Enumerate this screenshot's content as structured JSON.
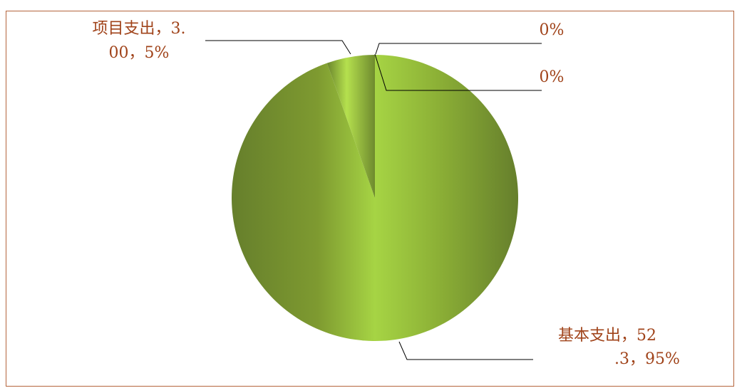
{
  "chart_data": {
    "type": "pie",
    "title": "",
    "slices": [
      {
        "name": "基本支出",
        "value": 52.3,
        "percent": 95,
        "label_lines": [
          "基本支出，52",
          ".3，95%"
        ]
      },
      {
        "name": "项目支出",
        "value": 3.0,
        "percent": 5,
        "label_lines": [
          "项目支出，3.",
          "00，5%"
        ]
      },
      {
        "name": "",
        "value": 0,
        "percent": 0,
        "label_lines": [
          "0%"
        ]
      },
      {
        "name": "",
        "value": 0,
        "percent": 0,
        "label_lines": [
          "0%"
        ]
      }
    ],
    "legend": "none"
  },
  "colors": {
    "slice_light": "#a6d444",
    "slice_dark": "#667f2c",
    "label_text": "#a0431a",
    "frame_border": "#b4643c"
  }
}
